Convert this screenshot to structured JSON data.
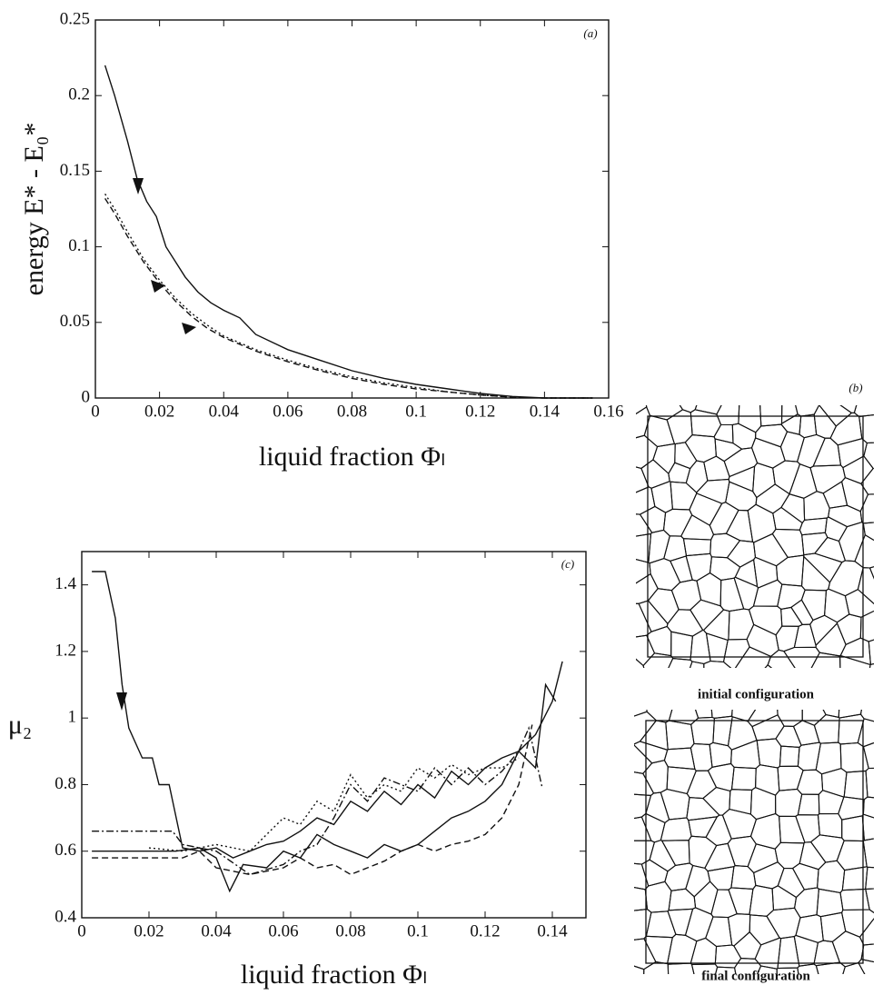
{
  "chart_data": [
    {
      "type": "line",
      "annotation": "(a)",
      "xlabel": "liquid fraction  Φₗ",
      "ylabel": "energy E* - E₀*",
      "xlim": [
        0,
        0.16
      ],
      "ylim": [
        0,
        0.25
      ],
      "xticks": [
        0,
        0.02,
        0.04,
        0.06,
        0.08,
        0.1,
        0.12,
        0.14,
        0.16
      ],
      "yticks": [
        0,
        0.05,
        0.1,
        0.15,
        0.2,
        0.25
      ],
      "series": [
        {
          "color": "#111",
          "style": "solid",
          "x": [
            0.003,
            0.006,
            0.01,
            0.013,
            0.016,
            0.019,
            0.022,
            0.025,
            0.028,
            0.032,
            0.036,
            0.04,
            0.045,
            0.05,
            0.06,
            0.07,
            0.08,
            0.09,
            0.1,
            0.11,
            0.12,
            0.13,
            0.14,
            0.155
          ],
          "values": [
            0.22,
            0.2,
            0.17,
            0.145,
            0.13,
            0.12,
            0.1,
            0.09,
            0.08,
            0.07,
            0.063,
            0.058,
            0.053,
            0.042,
            0.032,
            0.025,
            0.018,
            0.013,
            0.009,
            0.006,
            0.003,
            0.001,
            0,
            0
          ]
        },
        {
          "color": "#111",
          "style": "dotted",
          "x": [
            0.003,
            0.006,
            0.01,
            0.015,
            0.02,
            0.025,
            0.03,
            0.035,
            0.04,
            0.05,
            0.06,
            0.07,
            0.08,
            0.09,
            0.1,
            0.11,
            0.12,
            0.13,
            0.14,
            0.155
          ],
          "values": [
            0.135,
            0.125,
            0.11,
            0.092,
            0.078,
            0.066,
            0.056,
            0.048,
            0.041,
            0.032,
            0.025,
            0.019,
            0.014,
            0.01,
            0.007,
            0.004,
            0.002,
            0.0005,
            0,
            0
          ]
        },
        {
          "color": "#111",
          "style": "dashed",
          "x": [
            0.003,
            0.006,
            0.01,
            0.015,
            0.02,
            0.025,
            0.03,
            0.035,
            0.04,
            0.05,
            0.06,
            0.07,
            0.08,
            0.09,
            0.1,
            0.11,
            0.12,
            0.13,
            0.14,
            0.155
          ],
          "values": [
            0.132,
            0.122,
            0.107,
            0.09,
            0.076,
            0.064,
            0.054,
            0.046,
            0.04,
            0.031,
            0.024,
            0.018,
            0.013,
            0.009,
            0.006,
            0.004,
            0.002,
            0.0005,
            0,
            0
          ]
        }
      ]
    },
    {
      "type": "line",
      "annotation": "(c)",
      "xlabel": "liquid fraction  Φₗ",
      "ylabel": "μ₂",
      "xlim": [
        0,
        0.15
      ],
      "ylim": [
        0.4,
        1.5
      ],
      "xticks": [
        0,
        0.02,
        0.04,
        0.06,
        0.08,
        0.1,
        0.12,
        0.14
      ],
      "yticks": [
        0.4,
        0.6,
        0.8,
        1,
        1.2,
        1.4
      ],
      "series": [
        {
          "color": "#111",
          "style": "solid",
          "x": [
            0.003,
            0.007,
            0.01,
            0.012,
            0.014,
            0.018,
            0.021,
            0.023,
            0.026,
            0.03,
            0.035,
            0.04,
            0.045,
            0.05,
            0.055,
            0.06,
            0.065,
            0.07,
            0.075,
            0.08,
            0.085,
            0.09,
            0.095,
            0.1,
            0.105,
            0.11,
            0.115,
            0.12,
            0.125,
            0.13,
            0.135,
            0.14,
            0.143
          ],
          "values": [
            1.44,
            1.44,
            1.3,
            1.1,
            0.97,
            0.88,
            0.88,
            0.8,
            0.8,
            0.61,
            0.6,
            0.61,
            0.58,
            0.6,
            0.62,
            0.63,
            0.66,
            0.7,
            0.68,
            0.75,
            0.72,
            0.78,
            0.74,
            0.8,
            0.76,
            0.84,
            0.8,
            0.85,
            0.88,
            0.9,
            0.95,
            1.05,
            1.17
          ]
        },
        {
          "color": "#111",
          "style": "solid",
          "x": [
            0.003,
            0.028,
            0.035,
            0.04,
            0.044,
            0.048,
            0.055,
            0.06,
            0.065,
            0.07,
            0.075,
            0.08,
            0.085,
            0.09,
            0.095,
            0.1,
            0.105,
            0.11,
            0.115,
            0.12,
            0.125,
            0.13,
            0.135,
            0.138,
            0.141
          ],
          "values": [
            0.6,
            0.6,
            0.61,
            0.58,
            0.48,
            0.56,
            0.55,
            0.6,
            0.58,
            0.65,
            0.62,
            0.6,
            0.58,
            0.62,
            0.6,
            0.62,
            0.66,
            0.7,
            0.72,
            0.75,
            0.8,
            0.9,
            0.85,
            1.1,
            1.05
          ]
        },
        {
          "color": "#111",
          "style": "dashdot",
          "x": [
            0.003,
            0.027,
            0.03,
            0.04,
            0.05,
            0.06,
            0.065,
            0.07,
            0.075,
            0.08,
            0.085,
            0.09,
            0.095,
            0.1,
            0.105,
            0.11,
            0.115,
            0.12,
            0.125,
            0.13,
            0.133,
            0.137
          ],
          "values": [
            0.66,
            0.66,
            0.62,
            0.6,
            0.53,
            0.56,
            0.6,
            0.62,
            0.7,
            0.8,
            0.75,
            0.82,
            0.8,
            0.78,
            0.85,
            0.8,
            0.85,
            0.8,
            0.84,
            0.9,
            0.97,
            0.79
          ]
        },
        {
          "color": "#111",
          "style": "dashed",
          "x": [
            0.003,
            0.03,
            0.035,
            0.04,
            0.05,
            0.06,
            0.065,
            0.07,
            0.075,
            0.08,
            0.085,
            0.09,
            0.095,
            0.1,
            0.105,
            0.11,
            0.115,
            0.12,
            0.125,
            0.13,
            0.134
          ],
          "values": [
            0.58,
            0.58,
            0.6,
            0.55,
            0.53,
            0.55,
            0.58,
            0.55,
            0.56,
            0.53,
            0.55,
            0.57,
            0.6,
            0.62,
            0.6,
            0.62,
            0.63,
            0.65,
            0.7,
            0.8,
            0.98
          ]
        },
        {
          "color": "#111",
          "style": "dotted",
          "x": [
            0.02,
            0.03,
            0.04,
            0.05,
            0.055,
            0.06,
            0.065,
            0.07,
            0.075,
            0.08,
            0.085,
            0.09,
            0.095,
            0.1,
            0.105,
            0.11,
            0.115,
            0.12,
            0.125,
            0.13
          ],
          "values": [
            0.61,
            0.6,
            0.62,
            0.6,
            0.65,
            0.7,
            0.68,
            0.75,
            0.72,
            0.83,
            0.76,
            0.8,
            0.78,
            0.85,
            0.82,
            0.86,
            0.83,
            0.85,
            0.85,
            0.88
          ]
        }
      ]
    }
  ],
  "figure_b": {
    "label": "(b)",
    "initial_caption": "initial configuration",
    "final_caption": "final configuration"
  }
}
